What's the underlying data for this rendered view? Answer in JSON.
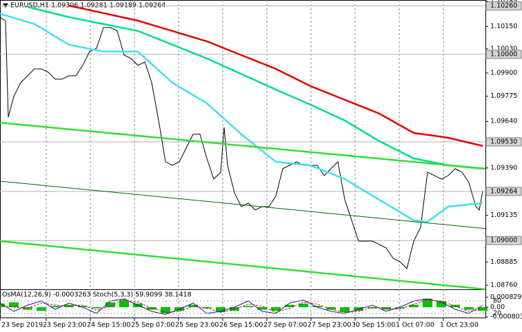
{
  "chart_data": {
    "type": "line",
    "title": "EURUSD,H1 1.09306 1.09281 1.09189 1.09264",
    "xlim": [
      0,
      176
    ],
    "xticks": [
      {
        "value": 0,
        "label": "23 Sep 2019"
      },
      {
        "value": 16.75,
        "label": "23 Sep 23:00"
      },
      {
        "value": 32.75,
        "label": "24 Sep 15:00"
      },
      {
        "value": 48.75,
        "label": "25 Sep 07:00"
      },
      {
        "value": 64.75,
        "label": "25 Sep 23:00"
      },
      {
        "value": 80.75,
        "label": "26 Sep 15:00"
      },
      {
        "value": 96.75,
        "label": "27 Sep 07:00"
      },
      {
        "value": 112.75,
        "label": "27 Sep 23:00"
      },
      {
        "value": 128.75,
        "label": "30 Sep 15:00"
      },
      {
        "value": 144.75,
        "label": "1 Oct 07:00"
      },
      {
        "value": 160.75,
        "label": "1 Oct 23:00"
      }
    ],
    "grid": true,
    "ylim": [
      1.08738,
      1.10292
    ],
    "yticks": [
      1.10285,
      {
        "value": 1.1015,
        "label": "1.10150"
      },
      {
        "value": 1.1003,
        "label": "1.10030"
      },
      {
        "value": 1.099,
        "label": "1.09900"
      },
      1.09775,
      {
        "value": 1.0964,
        "label": "1.09640"
      },
      {
        "value": 1.0939,
        "label": "1.09390"
      },
      1.09135,
      1.08885,
      {
        "value": 1.0876,
        "label": "1.08760"
      }
    ],
    "price_levels": [
      {
        "value": 1.1026,
        "label": "1.10260"
      },
      {
        "value": 1.1,
        "label": "1.10000"
      },
      {
        "value": 1.0953,
        "label": "1.09530"
      },
      {
        "value": 1.09264,
        "label": "1.09264"
      },
      {
        "value": 1.09,
        "label": "1.09000"
      }
    ],
    "series": [
      {
        "color": "#000000",
        "x": [
          0,
          2,
          3,
          5,
          7.5,
          10,
          12.5,
          15,
          17.5,
          20,
          22.5,
          25,
          27.5,
          30,
          32.5,
          35,
          37.5,
          40,
          42.5,
          45,
          47.5,
          50,
          52.5,
          55,
          57.5,
          60,
          62.5,
          65,
          67.5,
          70,
          72.5,
          75,
          77.5,
          80,
          81.25,
          82.5,
          85,
          87.5,
          90,
          92.5,
          95,
          97.5,
          100,
          102.5,
          105,
          107.5,
          110,
          112.5,
          115,
          117.5,
          120,
          122.5,
          125,
          127.5,
          130,
          132.5,
          135,
          137.5,
          140,
          142.5,
          145,
          147.5,
          150,
          152.5,
          155,
          157.5,
          160,
          162.5,
          165,
          167.5,
          170,
          172.5,
          173.75,
          175
        ],
        "values": [
          1.102,
          1.10181,
          1.09663,
          1.09774,
          1.09848,
          1.09885,
          1.09922,
          1.09922,
          1.09904,
          1.09867,
          1.09867,
          1.09885,
          1.09885,
          1.09941,
          1.10015,
          1.10033,
          1.10144,
          1.10144,
          1.10126,
          1.09996,
          1.09978,
          1.09941,
          1.09959,
          1.09848,
          1.09645,
          1.09423,
          1.09404,
          1.09423,
          1.09497,
          1.09571,
          1.09571,
          1.09441,
          1.0933,
          1.09367,
          1.09608,
          1.09404,
          1.09256,
          1.09182,
          1.09201,
          1.09164,
          1.09182,
          1.09182,
          1.09238,
          1.09386,
          1.09404,
          1.09423,
          1.09404,
          1.09404,
          1.09404,
          1.09349,
          1.09386,
          1.09423,
          1.09219,
          1.09108,
          1.08997,
          1.08997,
          1.08997,
          1.08979,
          1.0896,
          1.08905,
          1.08886,
          1.08849,
          1.08997,
          1.09071,
          1.09367,
          1.09349,
          1.0933,
          1.09349,
          1.09386,
          1.09367,
          1.09312,
          1.09182,
          1.09164,
          1.09264
        ]
      },
      {
        "color": "#e00000",
        "x": [
          25,
          50,
          75,
          100,
          112.5,
          125,
          137.5,
          150,
          162.5,
          175
        ],
        "values": [
          1.10262,
          1.10181,
          1.1007,
          1.09922,
          1.0983,
          1.09756,
          1.09682,
          1.09578,
          1.09552,
          1.09508
        ]
      },
      {
        "color": "#00dd88",
        "x": [
          10,
          25,
          50,
          75,
          100,
          112.5,
          125,
          137.5,
          150,
          162.5,
          175
        ],
        "values": [
          1.10255,
          1.102,
          1.10126,
          1.09978,
          1.09811,
          1.0973,
          1.09645,
          1.09534,
          1.09441,
          1.09404,
          1.09386
        ]
      },
      {
        "color": "#40e0f0",
        "x": [
          0,
          12.5,
          25,
          37.5,
          50,
          62.5,
          75,
          87.5,
          100,
          112.5,
          125,
          137.5,
          150,
          155,
          162.5,
          175
        ],
        "values": [
          1.10218,
          1.10163,
          1.10052,
          1.10015,
          1.10015,
          1.09848,
          1.09737,
          1.09571,
          1.09423,
          1.09404,
          1.0933,
          1.09219,
          1.09108,
          1.09101,
          1.09182,
          1.09201
        ]
      },
      {
        "color": "#33dd33",
        "x": [
          0,
          176
        ],
        "values": [
          1.09633,
          1.09386
        ]
      },
      {
        "color": "#006400",
        "x": [
          0,
          176
        ],
        "values": [
          1.09319,
          1.09064
        ]
      },
      {
        "color": "#33dd33",
        "x": [
          0,
          176
        ],
        "values": [
          1.08997,
          1.08738
        ]
      }
    ],
    "indicator": {
      "title": "OsMA(12,26,9) -0.0003263 Stoch(5,3,3) 59.9099 38.1418",
      "x": [
        0,
        5,
        10,
        15,
        20,
        25,
        30,
        35,
        40,
        45,
        50,
        55,
        60,
        65,
        70,
        75,
        80,
        85,
        90,
        95,
        100,
        105,
        110,
        115,
        120,
        125,
        130,
        135,
        140,
        145,
        150,
        155,
        160,
        165,
        170,
        175
      ],
      "osma_color": "#00c000",
      "osma": [
        0.0003,
        0.0004,
        -0.0002,
        -0.0003,
        0.0001,
        0.0002,
        0.0001,
        -0.0001,
        0.0004,
        0.0006,
        0.0003,
        -0.0002,
        -0.0005,
        -0.0003,
        0.0002,
        -0.0001,
        -0.0004,
        -0.0003,
        0.0001,
        -0.0002,
        -0.0003,
        0.0002,
        0.0003,
        0.0001,
        -0.0002,
        -0.0004,
        -0.0003,
        -0.0001,
        -0.0002,
        -0.0001,
        0.0002,
        0.0007,
        0.0005,
        0.0002,
        -0.0002,
        -0.0003
      ],
      "ylim": [
        -0.00085,
        0.00085
      ],
      "yticks": [
        0.0008297,
        {
          "value": 0,
          "label": "0.00"
        },
        -0.000803
      ],
      "stoch_ylim": [
        0,
        100
      ],
      "stoch_yticks": [
        80,
        20
      ],
      "stoch": [
        {
          "color": "#1a1aa0",
          "values": [
            70,
            30,
            60,
            80,
            40,
            70,
            50,
            20,
            80,
            90,
            60,
            30,
            15,
            40,
            70,
            20,
            30,
            50,
            80,
            30,
            20,
            70,
            85,
            50,
            30,
            20,
            40,
            60,
            30,
            50,
            80,
            90,
            75,
            40,
            20,
            60
          ]
        },
        {
          "color": "#e00000",
          "values": [
            60,
            50,
            45,
            70,
            60,
            55,
            60,
            35,
            55,
            85,
            75,
            45,
            25,
            30,
            55,
            45,
            25,
            40,
            65,
            55,
            25,
            45,
            75,
            65,
            40,
            25,
            30,
            50,
            45,
            40,
            65,
            85,
            80,
            55,
            30,
            40
          ]
        }
      ]
    }
  }
}
